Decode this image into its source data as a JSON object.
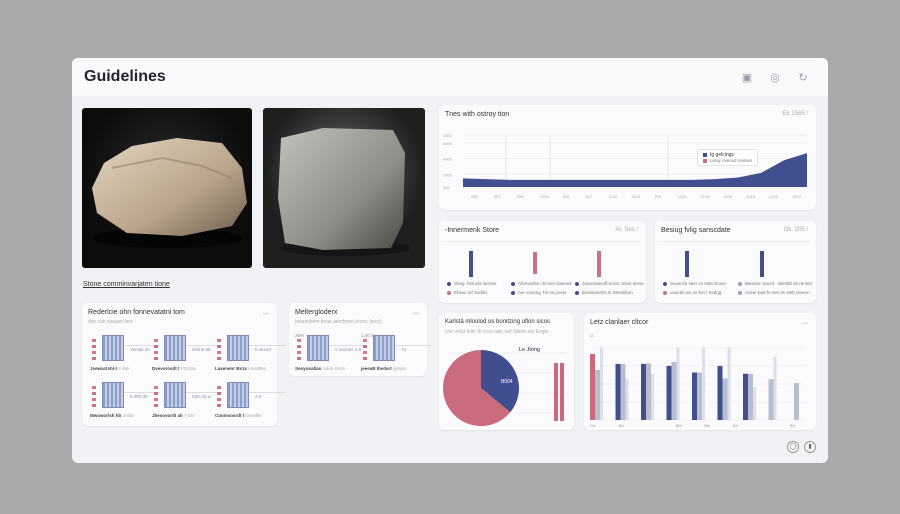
{
  "header": {
    "title": "Guidelines",
    "icons": [
      "image-icon",
      "settings-icon",
      "refresh-icon"
    ]
  },
  "gallery": {
    "link": "Stone comminvarjaten tione"
  },
  "cardA": {
    "title": "Rederlcie ohn fonnevatatni tom",
    "subtitle": "des cuh ossuen fsrs",
    "items": [
      {
        "label": "Jsewactshl-t",
        "meta": "8 ible",
        "side": "Yemak 4h"
      },
      {
        "label": "Dvevorosdt t",
        "meta": "PDSSa",
        "side": "Orshe 8b"
      },
      {
        "label": "Lavenenr Bs1s",
        "meta": "lonstltlne",
        "side": "h sesort"
      },
      {
        "label": "Mwoworlsh hb",
        "meta": "3 Ible",
        "side": "5-350 3b"
      },
      {
        "label": "Jbesovordt ah",
        "meta": "7-Bts",
        "side": "5(5c 2y a"
      },
      {
        "label": "Cunmsosrdt l",
        "meta": "lonstiltle",
        "side": "2.0"
      }
    ]
  },
  "cardB": {
    "title": "Meltergloderx",
    "subtitle": "joeasnbem tieae aerctmnd erzes (teco)",
    "items": [
      {
        "label": "Seoyosatlas",
        "meta": "solok ztrein",
        "top": "25%",
        "side": "s meroes 1.5"
      },
      {
        "label": "jeeeaB Ihvdsrt",
        "meta": "gelstin",
        "top": "1,40 S",
        "side": "Tu"
      }
    ]
  },
  "area": {
    "title": "Tnes with ostroy tion",
    "menu": "Ek 1565 /",
    "legend": [
      {
        "label": "Ig gelcings",
        "color": "#414f8f"
      },
      {
        "label": "Leniy rivensd meloes",
        "color": "#c86f80"
      }
    ]
  },
  "mid1": {
    "title": "-Innermenk Store",
    "menu": "Ar. Ses /",
    "bars": [
      {
        "color": "#414f8f",
        "value": 1
      },
      {
        "color": "#c77385",
        "value": 0.85
      },
      {
        "color": "#c77385",
        "value": 1
      }
    ],
    "legend": [
      {
        "label": "Sheg. fstrucla loerser",
        "color": "#414f8f"
      },
      {
        "label": "Ahmvedse chcnes Gaenek",
        "color": "#414f8f"
      },
      {
        "label": "Jassenasroff.ernac Siser teese",
        "color": "#414f8f"
      },
      {
        "label": "Ehsvc ref Ssdlris",
        "color": "#c77385"
      },
      {
        "label": "Aer snveng Tni es posst",
        "color": "#414f8f"
      },
      {
        "label": "Boewemmts ts rtensebon",
        "color": "#414f8f"
      }
    ]
  },
  "mid2": {
    "title": "Besiug fvlig sanscdate",
    "menu": "Ok. 205 /",
    "bars": [
      {
        "color": "#414f8f",
        "value": 1
      },
      {
        "color": "#414f8f",
        "value": 1
      }
    ],
    "legend": [
      {
        "label": "Suvenck seer zs stett slooer",
        "color": "#414f8f"
      },
      {
        "label": "Bieesac Sacrd - dereldt oh reneer",
        "color": "#9a9fb5"
      },
      {
        "label": "uuacde sie ss fun l Ssdrjg",
        "color": "#c77385"
      },
      {
        "label": "Anser pad fs mer its stett nevern",
        "color": "#9a9fb5"
      }
    ]
  },
  "pie": {
    "title": "Karlstä mloolod os bonitzing uflon sicos",
    "subtitle": "Ure velur inim Ik rrocs ase oef-Sitere ost Engin",
    "label_top": "Le Jtong",
    "label_slice": "B004"
  },
  "barcard": {
    "title": "Letz clanlaer cltcor",
    "ytick": "12",
    "xticks": [
      "Ga",
      "Bd",
      "",
      "Bfd",
      "Bfs",
      "Bd",
      "",
      "Bd"
    ]
  },
  "chart_data": [
    {
      "type": "area",
      "title": "Tnes with ostroy tion",
      "yticks": [
        "400",
        "2000",
        "4000",
        "6000",
        "7000"
      ],
      "ylim": [
        400,
        7000
      ],
      "x": [
        1,
        2,
        3,
        4,
        5,
        6,
        7,
        8,
        9,
        10,
        11,
        12,
        13,
        14,
        15,
        16
      ],
      "xticks": [
        "200",
        "507",
        "508",
        "1000",
        "510",
        "517",
        "1100",
        "4014",
        "570",
        "1025",
        "4100",
        "1106",
        "1016",
        "1200",
        "1502",
        ""
      ],
      "series": [
        {
          "name": "Ig gelcings",
          "values": [
            1500,
            1400,
            1300,
            1300,
            1300,
            1300,
            1300,
            1300,
            1300,
            1300,
            1300,
            1400,
            1600,
            2200,
            3800,
            4700
          ]
        }
      ]
    },
    {
      "type": "pie",
      "slices": [
        {
          "value": 64,
          "color": "#c96b7c"
        },
        {
          "value": 36,
          "color": "#404d8e",
          "label": "B004"
        }
      ]
    },
    {
      "type": "bar",
      "series": [
        {
          "color": "#414f8f",
          "values": [
            0,
            8.5,
            8.5,
            8.2,
            7.2,
            8.2,
            7,
            0,
            0
          ]
        },
        {
          "color": "#c96b7c",
          "values": [
            10,
            0,
            0,
            0,
            0,
            0,
            0,
            0,
            0
          ]
        },
        {
          "color": "#b8bdd0",
          "values": [
            7.6,
            8.5,
            8.6,
            8.8,
            7.2,
            6.3,
            7,
            6.2,
            5.6
          ]
        },
        {
          "color": "#dcdfe8",
          "values": [
            11,
            6.2,
            7,
            11,
            11,
            11,
            5,
            9.6,
            0
          ]
        }
      ]
    }
  ]
}
